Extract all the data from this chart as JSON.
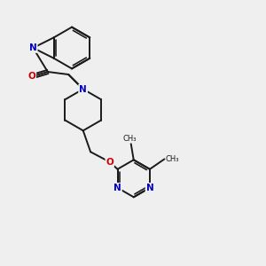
{
  "background_color": "#efefef",
  "bond_color": "#1a1a1a",
  "nitrogen_color": "#0000cc",
  "oxygen_color": "#cc0000",
  "bond_width": 1.4,
  "figsize": [
    3.0,
    3.0
  ],
  "dpi": 100,
  "xlim": [
    0,
    10
  ],
  "ylim": [
    0,
    10
  ]
}
